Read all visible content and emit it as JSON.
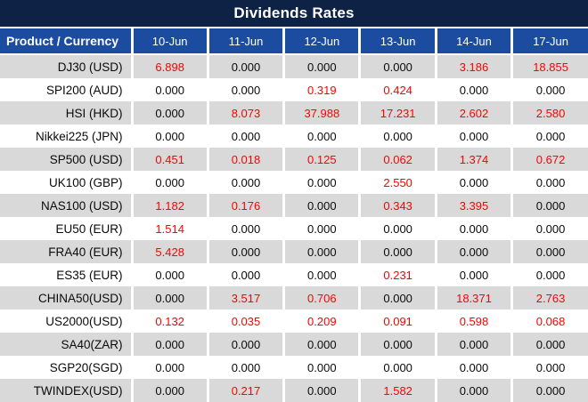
{
  "title": "Dividends Rates",
  "colors": {
    "title_bg": "#0d2244",
    "header_bg": "#1b4ca0",
    "stripe": "#d9d9d9",
    "zero_text": "#0a0a0a",
    "nonzero_text": "#ff0000",
    "header_text": "#ffffff"
  },
  "chart_data": {
    "type": "table",
    "title": "Dividends Rates",
    "columns": [
      "Product / Currency",
      "10-Jun",
      "11-Jun",
      "12-Jun",
      "13-Jun",
      "14-Jun",
      "17-Jun"
    ],
    "rows": [
      {
        "label": "DJ30 (USD)",
        "values": [
          "6.898",
          "0.000",
          "0.000",
          "0.000",
          "3.186",
          "18.855"
        ]
      },
      {
        "label": "SPI200 (AUD)",
        "values": [
          "0.000",
          "0.000",
          "0.319",
          "0.424",
          "0.000",
          "0.000"
        ]
      },
      {
        "label": "HSI (HKD)",
        "values": [
          "0.000",
          "8.073",
          "37.988",
          "17.231",
          "2.602",
          "2.580"
        ]
      },
      {
        "label": "Nikkei225 (JPN)",
        "values": [
          "0.000",
          "0.000",
          "0.000",
          "0.000",
          "0.000",
          "0.000"
        ]
      },
      {
        "label": "SP500 (USD)",
        "values": [
          "0.451",
          "0.018",
          "0.125",
          "0.062",
          "1.374",
          "0.672"
        ]
      },
      {
        "label": "UK100 (GBP)",
        "values": [
          "0.000",
          "0.000",
          "0.000",
          "2.550",
          "0.000",
          "0.000"
        ]
      },
      {
        "label": "NAS100 (USD)",
        "values": [
          "1.182",
          "0.176",
          "0.000",
          "0.343",
          "3.395",
          "0.000"
        ]
      },
      {
        "label": "EU50 (EUR)",
        "values": [
          "1.514",
          "0.000",
          "0.000",
          "0.000",
          "0.000",
          "0.000"
        ]
      },
      {
        "label": "FRA40 (EUR)",
        "values": [
          "5.428",
          "0.000",
          "0.000",
          "0.000",
          "0.000",
          "0.000"
        ]
      },
      {
        "label": "ES35 (EUR)",
        "values": [
          "0.000",
          "0.000",
          "0.000",
          "0.231",
          "0.000",
          "0.000"
        ]
      },
      {
        "label": "CHINA50(USD)",
        "values": [
          "0.000",
          "3.517",
          "0.706",
          "0.000",
          "18.371",
          "2.763"
        ]
      },
      {
        "label": "US2000(USD)",
        "values": [
          "0.132",
          "0.035",
          "0.209",
          "0.091",
          "0.598",
          "0.068"
        ]
      },
      {
        "label": "SA40(ZAR)",
        "values": [
          "0.000",
          "0.000",
          "0.000",
          "0.000",
          "0.000",
          "0.000"
        ]
      },
      {
        "label": "SGP20(SGD)",
        "values": [
          "0.000",
          "0.000",
          "0.000",
          "0.000",
          "0.000",
          "0.000"
        ]
      },
      {
        "label": "TWINDEX(USD)",
        "values": [
          "0.000",
          "0.217",
          "0.000",
          "1.582",
          "0.000",
          "0.000"
        ]
      }
    ]
  }
}
